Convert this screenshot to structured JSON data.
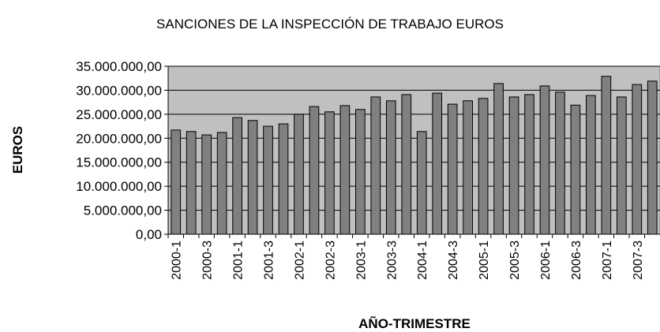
{
  "chart_data": {
    "type": "bar",
    "title": "SANCIONES DE LA INSPECCIÓN DE TRABAJO EUROS",
    "x_label": "AÑO-TRIMESTRE",
    "y_label": "EUROS",
    "categories": [
      "2000-1",
      null,
      "2000-3",
      null,
      "2001-1",
      null,
      "2001-3",
      null,
      "2002-1",
      null,
      "2002-3",
      null,
      "2003-1",
      null,
      "2003-3",
      null,
      "2004-1",
      null,
      "2004-3",
      null,
      "2005-1",
      null,
      "2005-3",
      null,
      "2006-1",
      null,
      "2006-3",
      null,
      "2007-1",
      null,
      "2007-3",
      null
    ],
    "values": [
      21700000,
      21400000,
      20700000,
      21200000,
      24300000,
      23700000,
      22500000,
      23000000,
      25000000,
      26600000,
      25500000,
      26800000,
      26000000,
      28600000,
      27800000,
      29100000,
      21400000,
      29400000,
      27100000,
      27800000,
      28300000,
      31400000,
      28600000,
      29100000,
      30900000,
      29600000,
      26900000,
      28900000,
      32900000,
      28600000,
      31200000,
      31900000
    ],
    "color": "#808080",
    "plot_background": "#c0c0c0",
    "ylim": [
      0,
      35000000
    ],
    "yticks": [
      {
        "value": 0,
        "label": "0,00"
      },
      {
        "value": 5000000,
        "label": "5.000.000,00"
      },
      {
        "value": 10000000,
        "label": "10.000.000,00"
      },
      {
        "value": 15000000,
        "label": "15.000.000,00"
      },
      {
        "value": 20000000,
        "label": "20.000.000,00"
      },
      {
        "value": 25000000,
        "label": "25.000.000,00"
      },
      {
        "value": 30000000,
        "label": "30.000.000,00"
      },
      {
        "value": 35000000,
        "label": "35.000.000,00"
      }
    ],
    "grid": true
  }
}
